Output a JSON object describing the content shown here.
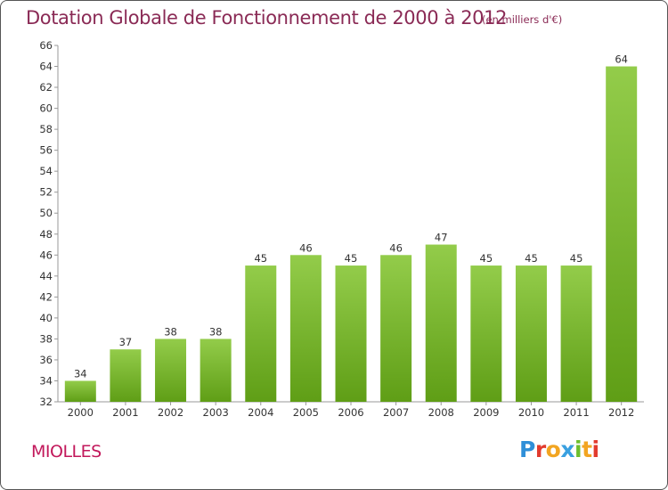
{
  "header": {
    "title": "Dotation Globale de Fonctionnement de 2000 à 2012",
    "subtitle": "(en milliers d'€)"
  },
  "footer": {
    "commune": "MIOLLES",
    "logo_letters": [
      "P",
      "r",
      "o",
      "x",
      "i",
      "t",
      "i"
    ],
    "logo_colors": [
      "#2f8fd8",
      "#e23b2e",
      "#f2a521",
      "#3aa0e0",
      "#6cbf2e",
      "#f2a521",
      "#e23b2e"
    ]
  },
  "chart_data": {
    "type": "bar",
    "title": "Dotation Globale de Fonctionnement de 2000 à 2012",
    "subtitle": "(en milliers d'€)",
    "xlabel": "",
    "ylabel": "",
    "categories": [
      "2000",
      "2001",
      "2002",
      "2003",
      "2004",
      "2005",
      "2006",
      "2007",
      "2008",
      "2009",
      "2010",
      "2011",
      "2012"
    ],
    "values": [
      34,
      37,
      38,
      38,
      45,
      46,
      45,
      46,
      47,
      45,
      45,
      45,
      64
    ],
    "ylim": [
      32,
      66
    ],
    "yticks": [
      32,
      34,
      36,
      38,
      40,
      42,
      44,
      46,
      48,
      50,
      52,
      54,
      56,
      58,
      60,
      62,
      64,
      66
    ],
    "grid": false,
    "bar_color_top": "#93cc4a",
    "bar_color_bottom": "#5f9e16"
  }
}
